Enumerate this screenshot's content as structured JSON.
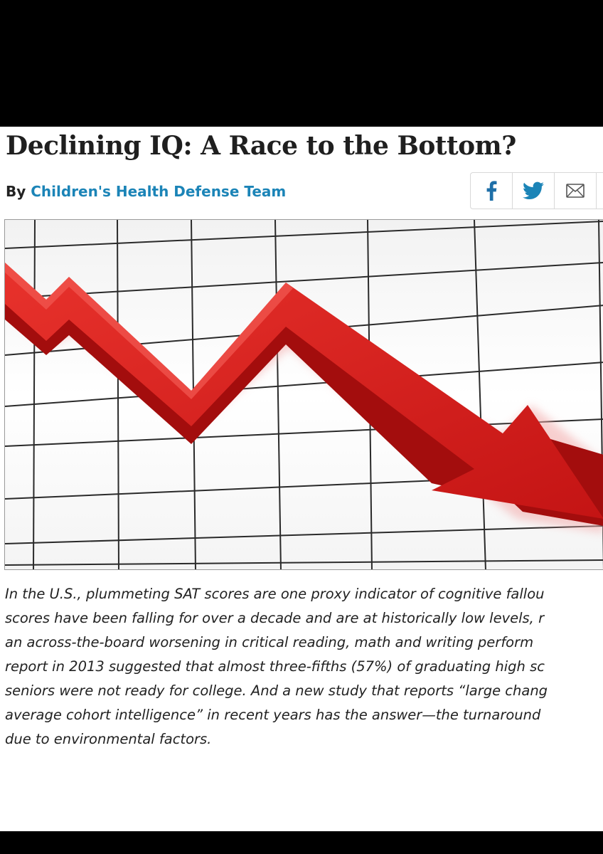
{
  "article": {
    "title": "Declining IQ: A Race to the Bottom?",
    "byline": {
      "prefix": "By",
      "author": "Children's Health Defense Team"
    },
    "share": [
      {
        "name": "facebook",
        "icon": "facebook-icon"
      },
      {
        "name": "twitter",
        "icon": "twitter-icon"
      },
      {
        "name": "email",
        "icon": "envelope-icon"
      }
    ],
    "hero_image": {
      "description_icon": "declining-arrow-chart-image",
      "colors": {
        "arrow": "#d81e1e",
        "arrow_dark": "#a80f0f",
        "grid": "#222222",
        "background": "#ffffff"
      }
    },
    "body_lines": [
      "In the U.S., plummeting SAT scores are one proxy indicator of cognitive fallou",
      "scores have been falling for over a decade and are at historically low levels, r",
      "an across-the-board worsening in critical reading, math and writing perform",
      "report in 2013 suggested that almost three-fifths (57%) of graduating high sc",
      "seniors were not ready for college. And a new study that reports “large chang",
      "average cohort intelligence” in recent years has the answer—the turnaround",
      "due to environmental factors."
    ]
  },
  "colors": {
    "link": "#1b84b7",
    "facebook": "#1e6fa8",
    "twitter": "#1b84b7",
    "frame": "#000000"
  }
}
